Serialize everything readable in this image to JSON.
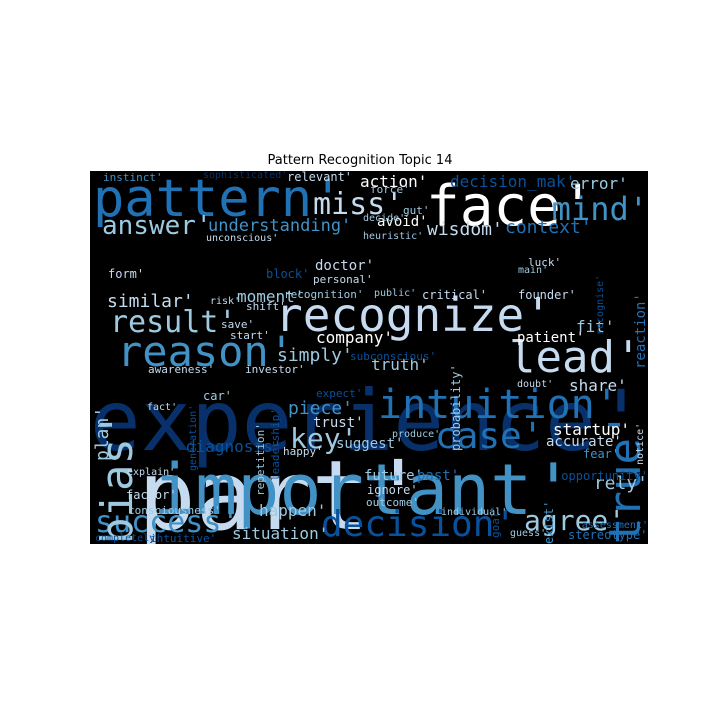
{
  "title": "Pattern Recognition Topic 14",
  "colors": {
    "background": "#000000",
    "white": "#ffffff",
    "pale": "#c6dbef",
    "light": "#9ecae1",
    "mid": "#4292c6",
    "deep": "#2171b5",
    "dark": "#08519c",
    "navy": "#08306b"
  },
  "words": [
    "experience'",
    "part'",
    "important'",
    "face'",
    "pattern'",
    "recognize'",
    "reason'",
    "intuition'",
    "decision'",
    "success'",
    "lead'",
    "true'",
    "case'",
    "bias'",
    "mind'",
    "miss'",
    "answer'",
    "result'",
    "agree'",
    "key'",
    "understanding'",
    "wisdom'",
    "context'",
    "action'",
    "decision_mak'",
    "error'",
    "similar'",
    "company'",
    "simply'",
    "truth'",
    "piece'",
    "trust'",
    "happen'",
    "situation'",
    "startup'",
    "accurate'",
    "share'",
    "rely'",
    "diagnosis'",
    "suggest'",
    "moment'",
    "plan'",
    "patient'",
    "fit'",
    "founder'",
    "critical'",
    "recognition'",
    "doctor'",
    "personal'",
    "avoid'",
    "reaction'",
    "future'",
    "past'",
    "ignore'",
    "outcome'",
    "factor'",
    "consciousness'",
    "completely'",
    "intuitive'",
    "stereotype'",
    "guess'",
    "opportunity'",
    "fear'",
    "assessment'",
    "exist'",
    "goal'",
    "individual'",
    "instinct'",
    "sophisticated'",
    "relevant'",
    "gut'",
    "force'",
    "decide'",
    "heuristic'",
    "unconscious'",
    "form'",
    "block'",
    "shift'",
    "public'",
    "luck'",
    "main'",
    "recognise'",
    "save'",
    "start'",
    "awareness'",
    "investor'",
    "subconscious'",
    "probability'",
    "doubt'",
    "notice'",
    "car'",
    "fact'",
    "repetition'",
    "leadership'",
    "generation'",
    "explain'",
    "produce'",
    "happy'",
    "expect'",
    "risk'"
  ]
}
